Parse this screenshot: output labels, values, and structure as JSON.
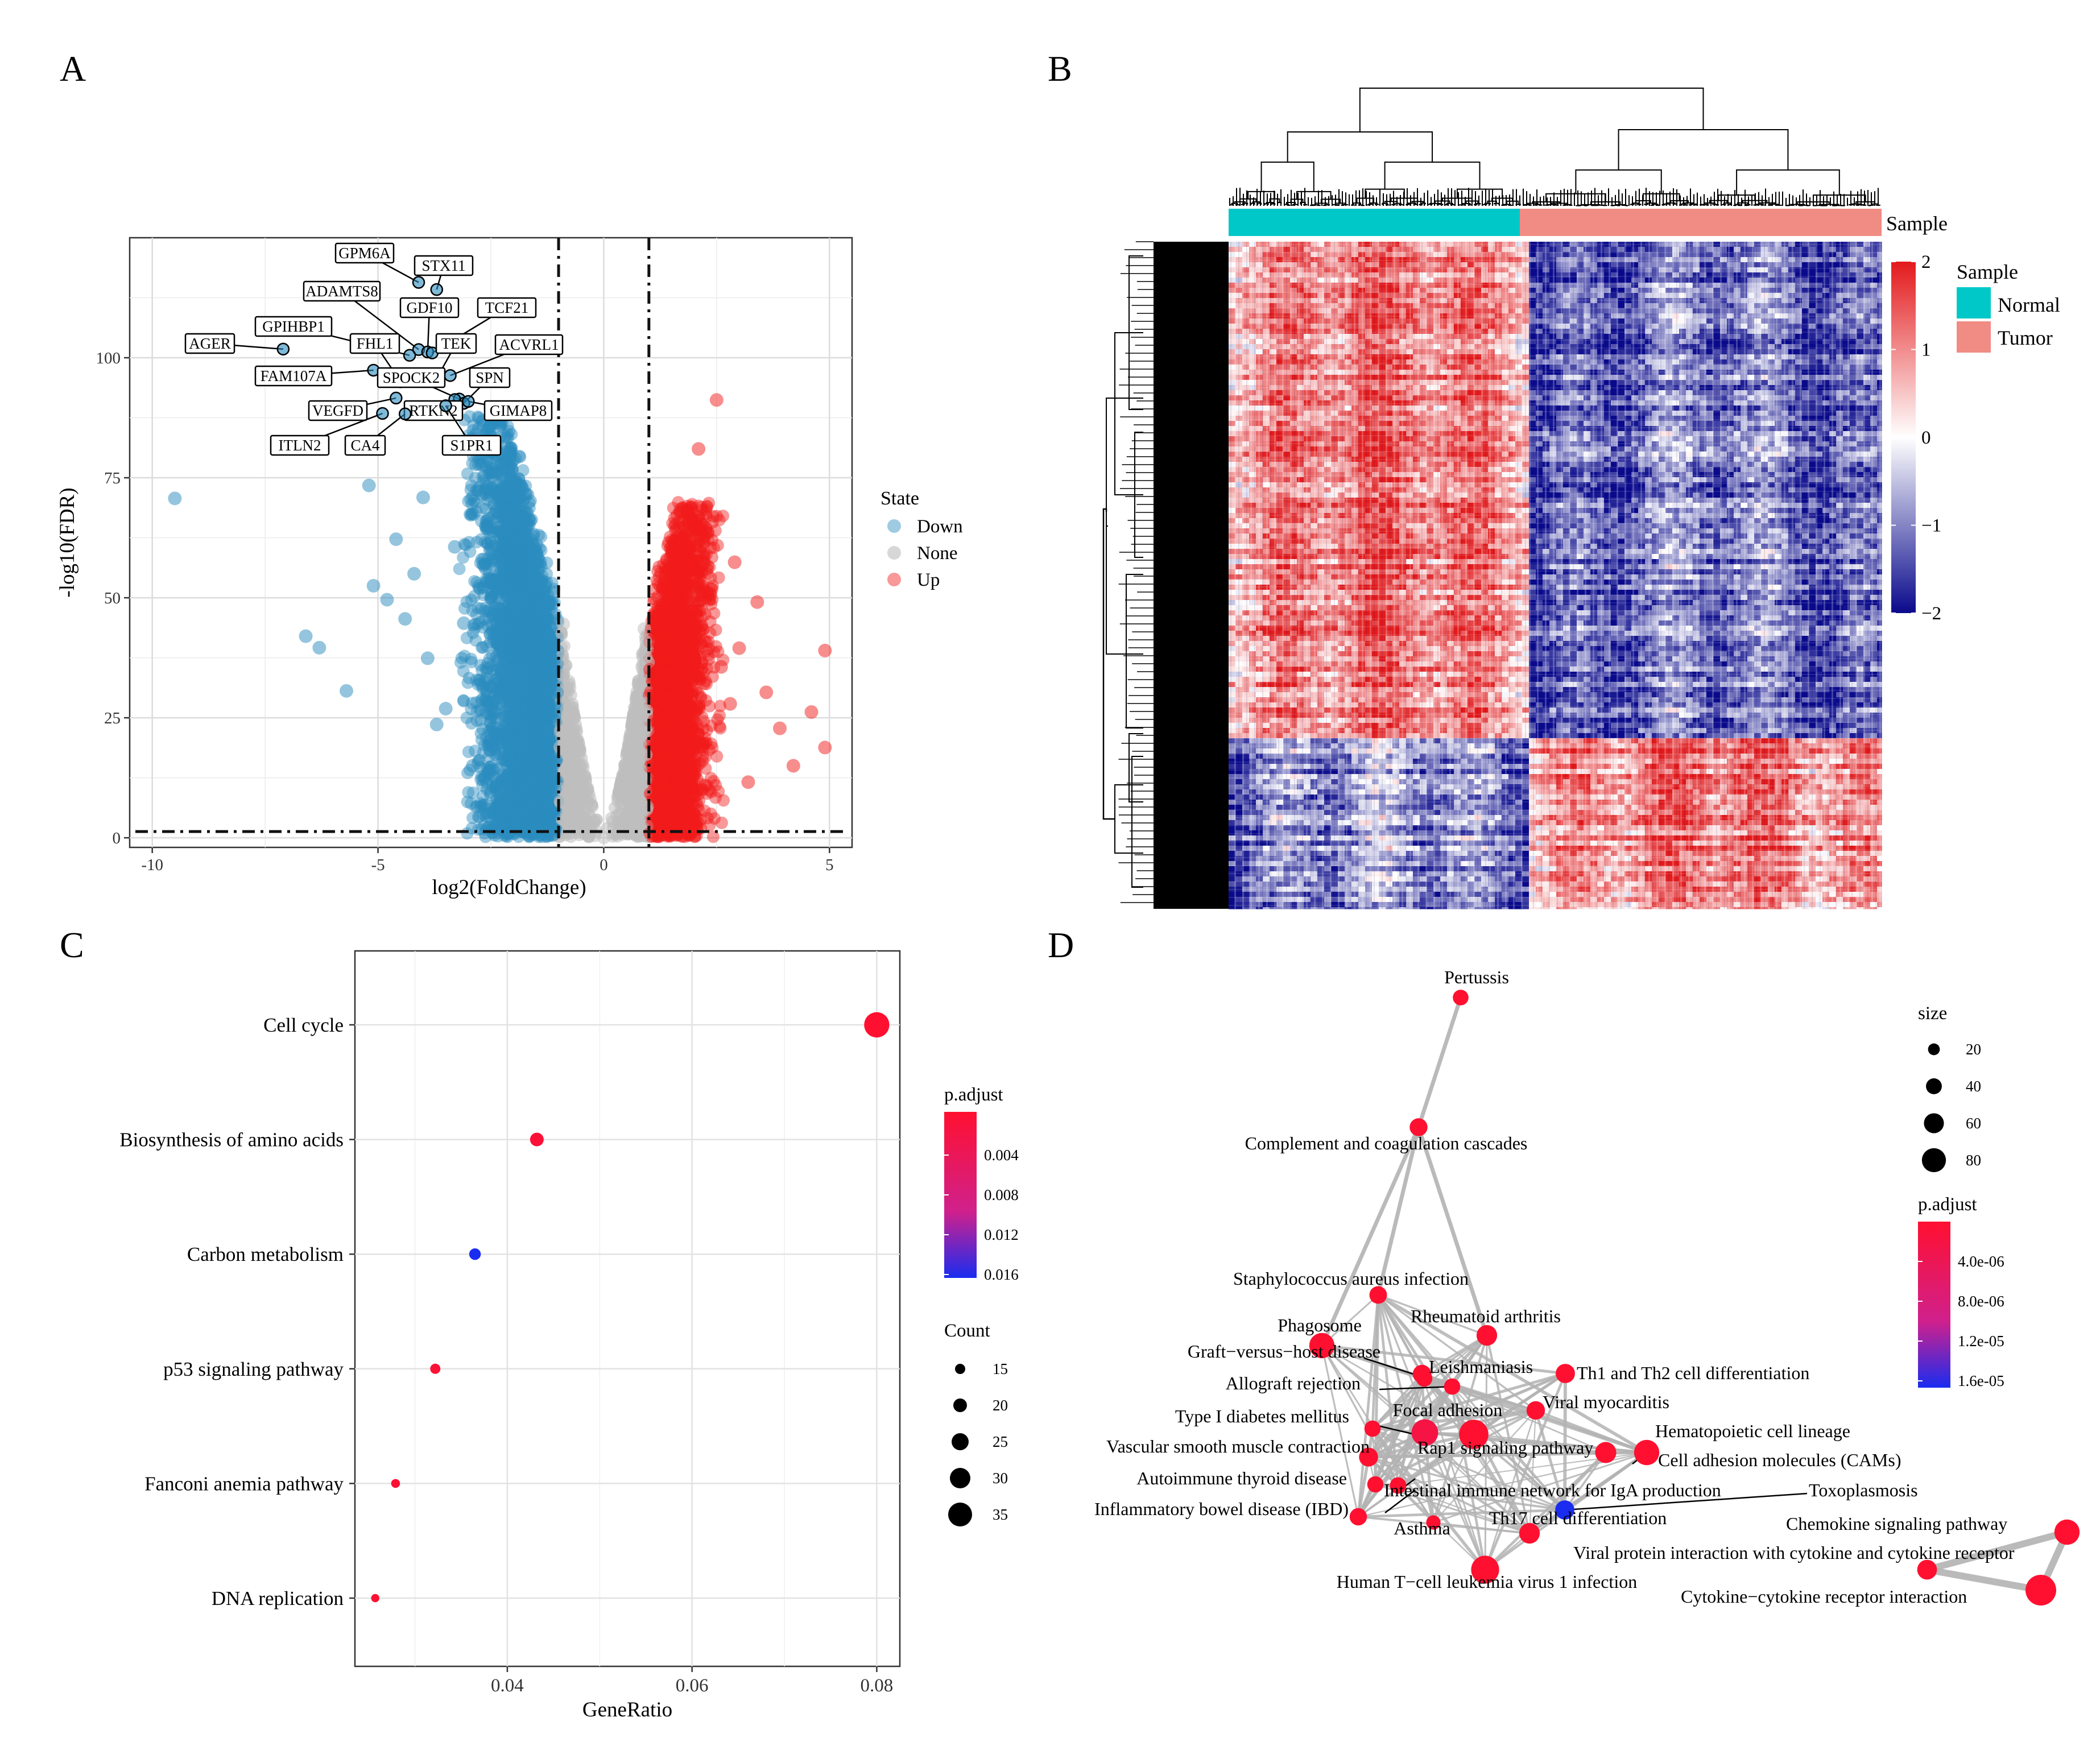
{
  "panels": {
    "A": "A",
    "B": "B",
    "C": "C",
    "D": "D"
  },
  "colors": {
    "down": "#2b8cbe",
    "none": "#bdbdbd",
    "up": "#f21b1b",
    "heat_high": "#e31a1c",
    "heat_low": "#0a0a8c",
    "normal": "#00c8c8",
    "tumor": "#f08c84",
    "edge": "#b3b3b3"
  },
  "chart_data": [
    {
      "panel": "A",
      "type": "scatter",
      "title": "",
      "xlabel": "log2(FoldChange)",
      "ylabel": "-log10(FDR)",
      "xlim": [
        -10.5,
        5.5
      ],
      "ylim": [
        -2,
        125
      ],
      "x_ticks": [
        -10,
        -5,
        0,
        5
      ],
      "y_ticks": [
        0,
        25,
        50,
        75,
        100
      ],
      "grid": true,
      "thresholds": {
        "x": [
          -1,
          1
        ],
        "y": 1.3
      },
      "legend": {
        "title": "State",
        "entries": [
          "Down",
          "None",
          "Up"
        ],
        "position": "right"
      },
      "labeled_points": [
        {
          "label": "GPM6A",
          "x": -4.1,
          "y": 115.7
        },
        {
          "label": "STX11",
          "x": -3.7,
          "y": 114.2
        },
        {
          "label": "ADAMTS8",
          "x": -4.1,
          "y": 101.7
        },
        {
          "label": "GPIHBP1",
          "x": -4.3,
          "y": 100.5
        },
        {
          "label": "GDF10",
          "x": -3.9,
          "y": 101.2
        },
        {
          "label": "TCF21",
          "x": -3.8,
          "y": 101.0
        },
        {
          "label": "AGER",
          "x": -7.1,
          "y": 101.8
        },
        {
          "label": "FHL1",
          "x": -4.5,
          "y": 95.0
        },
        {
          "label": "TEK",
          "x": -3.7,
          "y": 95.7
        },
        {
          "label": "ACVRL1",
          "x": -3.4,
          "y": 96.3
        },
        {
          "label": "FAM107A",
          "x": -5.1,
          "y": 97.4
        },
        {
          "label": "SPOCK2",
          "x": -3.2,
          "y": 91.4
        },
        {
          "label": "SPN",
          "x": -3.1,
          "y": 90.5
        },
        {
          "label": "VEGFD",
          "x": -4.6,
          "y": 91.6
        },
        {
          "label": "RTKN2",
          "x": -3.3,
          "y": 91.3
        },
        {
          "label": "GIMAP8",
          "x": -3.0,
          "y": 90.9
        },
        {
          "label": "ITLN2",
          "x": -4.9,
          "y": 88.4
        },
        {
          "label": "CA4",
          "x": -4.4,
          "y": 88.3
        },
        {
          "label": "S1PR1",
          "x": -3.5,
          "y": 90.0
        }
      ],
      "series": [
        {
          "name": "Down",
          "points": [
            [
              -9.5,
              70.7
            ],
            [
              -6.6,
              42.0
            ],
            [
              -6.3,
              39.6
            ],
            [
              -5.7,
              30.6
            ],
            [
              -5.2,
              73.4
            ],
            [
              -5.1,
              52.5
            ],
            [
              -4.8,
              49.6
            ],
            [
              -4.6,
              62.2
            ],
            [
              -4.4,
              45.6
            ],
            [
              -4.2,
              55.0
            ],
            [
              -4.0,
              70.9
            ],
            [
              -3.9,
              37.4
            ],
            [
              -3.7,
              23.6
            ],
            [
              -3.5,
              26.9
            ],
            [
              -3.3,
              60.6
            ],
            [
              -3.1,
              44.7
            ],
            [
              -2.9,
              15.0
            ],
            [
              -2.7,
              71.5
            ],
            [
              -2.6,
              35.4
            ],
            [
              -2.5,
              9.0
            ],
            [
              -2.3,
              64.7
            ],
            [
              -2.2,
              8.0
            ],
            [
              -2.0,
              54.6
            ],
            [
              -1.9,
              3.8
            ],
            [
              -1.7,
              46.3
            ],
            [
              -1.5,
              2.1
            ],
            [
              -1.3,
              38.5
            ],
            [
              -1.1,
              1.4
            ]
          ]
        },
        {
          "name": "None",
          "points": [
            [
              -0.9,
              44.5
            ],
            [
              -0.8,
              25.0
            ],
            [
              -0.6,
              7.5
            ],
            [
              -0.4,
              2.5
            ],
            [
              -0.2,
              0.5
            ],
            [
              0.0,
              0.1
            ],
            [
              0.2,
              0.4
            ],
            [
              0.4,
              2.0
            ],
            [
              0.6,
              6.5
            ],
            [
              0.8,
              20.0
            ],
            [
              0.9,
              43.5
            ]
          ]
        },
        {
          "name": "Up",
          "points": [
            [
              1.1,
              3.6
            ],
            [
              1.3,
              12.4
            ],
            [
              1.4,
              58.0
            ],
            [
              1.6,
              29.9
            ],
            [
              1.7,
              68.4
            ],
            [
              1.8,
              2.2
            ],
            [
              2.0,
              50.4
            ],
            [
              2.1,
              81.0
            ],
            [
              2.2,
              19.4
            ],
            [
              2.4,
              65.8
            ],
            [
              2.5,
              91.2
            ],
            [
              2.6,
              35.6
            ],
            [
              2.8,
              27.9
            ],
            [
              2.9,
              57.4
            ],
            [
              3.0,
              39.5
            ],
            [
              3.2,
              11.6
            ],
            [
              3.4,
              49.1
            ],
            [
              3.6,
              30.3
            ],
            [
              3.9,
              22.8
            ],
            [
              4.2,
              15.0
            ],
            [
              4.6,
              26.2
            ],
            [
              4.9,
              39.0
            ],
            [
              4.9,
              18.8
            ]
          ]
        }
      ]
    },
    {
      "panel": "B",
      "type": "heatmap",
      "title": "",
      "annotation_label": "Sample",
      "legend": {
        "title": "Sample",
        "entries": [
          "Normal",
          "Tumor"
        ],
        "position": "right"
      },
      "colorbar": {
        "ticks": [
          "2",
          "1",
          "0",
          "−1",
          "−2"
        ],
        "range": [
          -2,
          2
        ]
      },
      "columns": {
        "Normal": 0.45,
        "Tumor": 0.55
      },
      "row_blocks": [
        {
          "rows": 0.74,
          "Normal": 1.1,
          "Tumor": -1.2
        },
        {
          "rows": 0.26,
          "Normal": -0.9,
          "Tumor": 1.1
        }
      ]
    },
    {
      "panel": "C",
      "type": "scatter",
      "title": "",
      "xlabel": "GeneRatio",
      "ylabel": "",
      "xlim": [
        0.0235,
        0.0825
      ],
      "x_ticks": [
        "0.04",
        "0.06",
        "0.08"
      ],
      "grid": true,
      "categories": [
        "Cell cycle",
        "Biosynthesis of amino acids",
        "Carbon metabolism",
        "p53 signaling pathway",
        "Fanconi anemia pathway",
        "DNA replication"
      ],
      "gene_ratio": [
        0.08,
        0.0432,
        0.0365,
        0.0322,
        0.0279,
        0.0257
      ],
      "count": [
        37,
        20,
        17,
        15,
        13,
        12
      ],
      "p_adjust": [
        0.0001,
        0.0009,
        0.0165,
        0.0008,
        0.0006,
        0.0004
      ],
      "legend": {
        "padjust_title": "p.adjust",
        "padjust_ticks": [
          "0.004",
          "0.008",
          "0.012",
          "0.016"
        ],
        "count_title": "Count",
        "count_ticks": [
          "15",
          "20",
          "25",
          "30",
          "35"
        ],
        "position": "right"
      }
    },
    {
      "panel": "D",
      "type": "network",
      "title": "",
      "legend": {
        "size_title": "size",
        "size_ticks": [
          "20",
          "40",
          "60",
          "80"
        ],
        "padjust_title": "p.adjust",
        "padjust_ticks": [
          "4.0e-06",
          "8.0e-06",
          "1.2e-05",
          "1.6e-05"
        ],
        "position": "right"
      },
      "nodes": [
        {
          "label": "Pertussis",
          "size": 20,
          "p_adjust": 1e-06
        },
        {
          "label": "Complement and coagulation cascades",
          "size": 28,
          "p_adjust": 1e-06
        },
        {
          "label": "Staphylococcus aureus infection",
          "size": 27,
          "p_adjust": 1e-06
        },
        {
          "label": "Phagosome",
          "size": 55,
          "p_adjust": 1e-06
        },
        {
          "label": "Rheumatoid arthritis",
          "size": 38,
          "p_adjust": 1e-06
        },
        {
          "label": "Graft−versus−host disease",
          "size": 22,
          "p_adjust": 1e-06
        },
        {
          "label": "Leishmaniasis",
          "size": 30,
          "p_adjust": 1e-06
        },
        {
          "label": "Th1 and Th2 cell differentiation",
          "size": 33,
          "p_adjust": 1e-06
        },
        {
          "label": "Allograft rejection",
          "size": 22,
          "p_adjust": 1e-06
        },
        {
          "label": "Viral myocarditis",
          "size": 30,
          "p_adjust": 1e-06
        },
        {
          "label": "Type I diabetes mellitus",
          "size": 22,
          "p_adjust": 1e-06
        },
        {
          "label": "Focal adhesion",
          "size": 60,
          "p_adjust": 3e-06
        },
        {
          "label": "Hematopoietic cell lineage",
          "size": 40,
          "p_adjust": 1e-06
        },
        {
          "label": "Vascular smooth muscle contraction",
          "size": 32,
          "p_adjust": 1e-06
        },
        {
          "label": "Rap1 signaling pathway",
          "size": 70,
          "p_adjust": 1e-06
        },
        {
          "label": "Cell adhesion molecules (CAMs)",
          "size": 55,
          "p_adjust": 1e-06
        },
        {
          "label": "Autoimmune thyroid disease",
          "size": 22,
          "p_adjust": 1e-06
        },
        {
          "label": "Intestinal immune network for IgA production",
          "size": 23,
          "p_adjust": 1e-06
        },
        {
          "label": "Toxoplasmosis",
          "size": 33,
          "p_adjust": 1.6e-05
        },
        {
          "label": "Inflammatory bowel disease (IBD)",
          "size": 26,
          "p_adjust": 1e-06
        },
        {
          "label": "Asthma",
          "size": 15,
          "p_adjust": 1e-06
        },
        {
          "label": "Th17 cell differentiation",
          "size": 38,
          "p_adjust": 1e-06
        },
        {
          "label": "Human T−cell leukemia virus 1 infection",
          "size": 65,
          "p_adjust": 1e-06
        },
        {
          "label": "Chemokine signaling pathway",
          "size": 55,
          "p_adjust": 1e-06
        },
        {
          "label": "Viral protein interaction with cytokine and cytokine receptor",
          "size": 35,
          "p_adjust": 1e-06
        },
        {
          "label": "Cytokine−cytokine receptor interaction",
          "size": 75,
          "p_adjust": 1e-06
        }
      ]
    }
  ]
}
